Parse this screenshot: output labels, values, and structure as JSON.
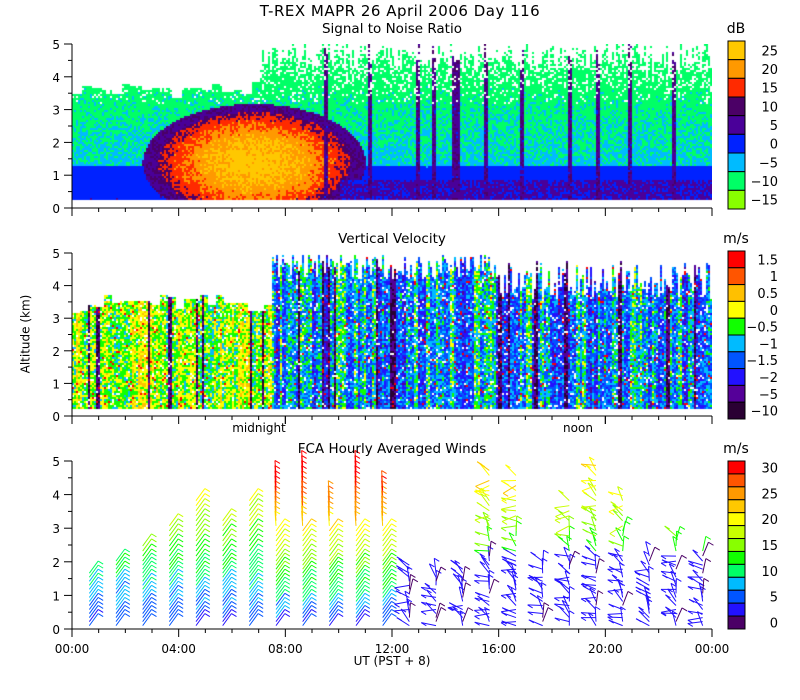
{
  "header": {
    "title": "T-REX  MAPR 26 April 2006 Day 116"
  },
  "panels": [
    {
      "title": "Signal to Noise Ratio",
      "unit": "dB"
    },
    {
      "title": "Vertical Velocity",
      "unit": "m/s"
    },
    {
      "title": "FCA Hourly Averaged Winds",
      "unit": "m/s"
    }
  ],
  "y_axis": {
    "label": "Altitude (km)",
    "ticks": [
      "0",
      "1",
      "2",
      "3",
      "4",
      "5"
    ]
  },
  "x_axis": {
    "label": "UT  (PST + 8)",
    "ticks": [
      "00:00",
      "04:00",
      "08:00",
      "12:00",
      "16:00",
      "20:00",
      "00:00"
    ]
  },
  "annotations": {
    "midnight": "midnight",
    "noon": "noon"
  },
  "chart_data": [
    {
      "type": "heatmap",
      "title": "Signal to Noise Ratio",
      "xlabel": "UT  (PST + 8)",
      "ylabel": "Altitude (km)",
      "xlim_hours": [
        0,
        24
      ],
      "ylim": [
        0,
        5
      ],
      "colorbar": {
        "unit": "dB",
        "labels": [
          "25",
          "20",
          "15",
          "10",
          "5",
          "0",
          "−5",
          "−10",
          "−15"
        ],
        "colors": [
          "#ffc800",
          "#ff9900",
          "#ff2a00",
          "#4b0066",
          "#4a0099",
          "#0022ff",
          "#00bbff",
          "#00ff66",
          "#88ff00"
        ]
      },
      "features": "Strong echo (15–25 dB) 04:00–10:00 below 3 km; weak (−15 to −5 dB) above; 0 dB near surface after 10:00"
    },
    {
      "type": "heatmap",
      "title": "Vertical Velocity",
      "xlim_hours": [
        0,
        24
      ],
      "ylim": [
        0,
        5
      ],
      "colorbar": {
        "unit": "m/s",
        "labels": [
          "1.5",
          "1",
          "0.5",
          "0",
          "−0.5",
          "−1",
          "−1.5",
          "−2",
          "−5",
          "−10"
        ],
        "colors": [
          "#ff0000",
          "#ff5500",
          "#ffc000",
          "#ffff00",
          "#11ff00",
          "#00bbff",
          "#0055ff",
          "#2211ff",
          "#550099",
          "#2a0033"
        ]
      }
    },
    {
      "type": "scatter",
      "title": "FCA Hourly Averaged Winds",
      "xlim_hours": [
        0,
        24
      ],
      "ylim": [
        0,
        5
      ],
      "hours": [
        0,
        1,
        2,
        3,
        4,
        5,
        6,
        7,
        8,
        9,
        10,
        11,
        12,
        13,
        14,
        15,
        16,
        17,
        18,
        19,
        20,
        21,
        22,
        23
      ],
      "top_km": [
        1.7,
        2.1,
        2.5,
        3.1,
        3.9,
        3.3,
        3.9,
        4.7,
        4.9,
        4.1,
        4.9,
        4.3,
        2.0,
        1.7,
        1.8,
        4.8,
        4.6,
        2.1,
        3.9,
        4.9,
        4.0,
        2.3,
        2.9,
        2.4
      ],
      "colorbar": {
        "unit": "m/s",
        "labels": [
          "30",
          "25",
          "20",
          "15",
          "10",
          "5",
          "0"
        ],
        "colors": [
          "#ff0000",
          "#ff5500",
          "#ff9900",
          "#ffc800",
          "#ffff00",
          "#c8ff00",
          "#88ff00",
          "#11ff00",
          "#00ff66",
          "#00bbff",
          "#0055ff",
          "#2211ff",
          "#4b0066"
        ]
      }
    }
  ]
}
